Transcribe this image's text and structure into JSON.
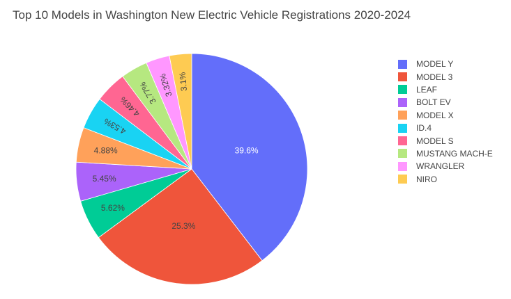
{
  "chart_data": {
    "type": "pie",
    "title": "Top 10 Models in Washington New Electric Vehicle Registrations 2020-2024",
    "categories": [
      "MODEL Y",
      "MODEL 3",
      "LEAF",
      "BOLT EV",
      "MODEL X",
      "ID.4",
      "MODEL S",
      "MUSTANG MACH-E",
      "WRANGLER",
      "NIRO"
    ],
    "values": [
      39.6,
      25.3,
      5.62,
      5.45,
      4.88,
      4.53,
      4.46,
      3.77,
      3.32,
      3.1
    ],
    "labels": [
      "39.6%",
      "25.3%",
      "5.62%",
      "5.45%",
      "4.88%",
      "4.53%",
      "4.46%",
      "3.77%",
      "3.32%",
      "3.1%"
    ],
    "colors": [
      "#636efa",
      "#EF553B",
      "#00cc96",
      "#ab63fa",
      "#FFA15A",
      "#19d3f3",
      "#FF6692",
      "#B6E880",
      "#FF97FF",
      "#FECB52"
    ],
    "label_colors": [
      "#ffffff",
      "#444444",
      "#444444",
      "#444444",
      "#444444",
      "#444444",
      "#444444",
      "#444444",
      "#444444",
      "#444444"
    ],
    "direction": "clockwise",
    "legend_position": "right"
  }
}
